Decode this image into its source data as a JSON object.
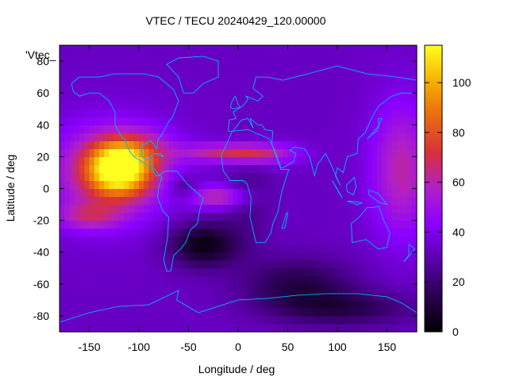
{
  "chart_data": {
    "type": "heatmap",
    "title": "VTEC / TECU 20240429_120.00000",
    "xlabel": "Longitude / deg",
    "ylabel": "Latitude / deg",
    "key_label": "'Vtec_",
    "xlim": [
      -180,
      180
    ],
    "ylim": [
      -90,
      90
    ],
    "x_ticks": [
      -150,
      -100,
      -50,
      0,
      50,
      100,
      150
    ],
    "y_ticks": [
      -80,
      -60,
      -40,
      -20,
      0,
      20,
      40,
      60,
      80
    ],
    "colorbar": {
      "min": 0,
      "max": 115,
      "ticks": [
        0,
        20,
        40,
        60,
        80,
        100
      ]
    },
    "palette": [
      "#000000",
      "#2a0050",
      "#5a00aa",
      "#8a00ff",
      "#b020c8",
      "#d8303a",
      "#e86a10",
      "#f5b000",
      "#ffff20"
    ],
    "map_line_color": "#00b4ff",
    "features": [
      {
        "lon": -120,
        "lat": 12,
        "sigma_lon": 22,
        "sigma_lat": 11,
        "vtec": 72
      },
      {
        "lon": -130,
        "lat": 10,
        "sigma_lon": 45,
        "sigma_lat": 22,
        "vtec": 30
      },
      {
        "lon": -105,
        "lat": 25,
        "sigma_lon": 28,
        "sigma_lat": 9,
        "vtec": 18
      },
      {
        "lon": -150,
        "lat": -17,
        "sigma_lon": 22,
        "sigma_lat": 6,
        "vtec": 22
      },
      {
        "lon": 20,
        "lat": 22,
        "sigma_lon": 28,
        "sigma_lat": 5,
        "vtec": 30
      },
      {
        "lon": -20,
        "lat": 23,
        "sigma_lon": 30,
        "sigma_lat": 4,
        "vtec": 22
      },
      {
        "lon": -20,
        "lat": -5,
        "sigma_lon": 22,
        "sigma_lat": 5,
        "vtec": 30
      },
      {
        "lon": 165,
        "lat": 12,
        "sigma_lon": 22,
        "sigma_lat": 30,
        "vtec": 28
      },
      {
        "lon": -35,
        "lat": -35,
        "sigma_lon": 25,
        "sigma_lat": 10,
        "vtec": -30
      },
      {
        "lon": -55,
        "lat": 0,
        "sigma_lon": 12,
        "sigma_lat": 6,
        "vtec": -15
      },
      {
        "lon": 60,
        "lat": -60,
        "sigma_lon": 40,
        "sigma_lat": 12,
        "vtec": -20
      },
      {
        "lon": 110,
        "lat": -75,
        "sigma_lon": 50,
        "sigma_lat": 8,
        "vtec": -18
      },
      {
        "lon": 10,
        "lat": -5,
        "sigma_lon": 18,
        "sigma_lat": 20,
        "vtec": -10
      }
    ],
    "base_vtec": 33
  }
}
